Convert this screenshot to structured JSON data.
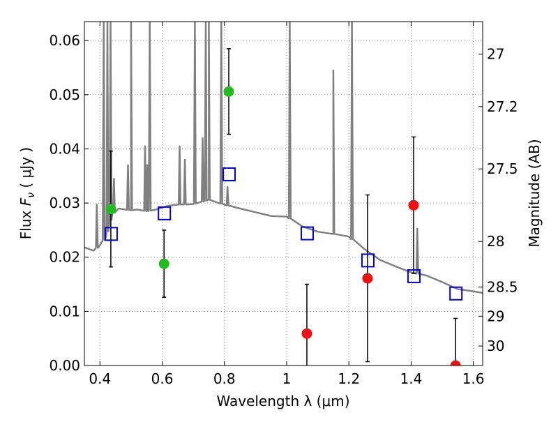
{
  "chart_data": {
    "type": "scatter",
    "xlabel": "Wavelength  λ (μm)",
    "ylabel_prefix": "Flux  ",
    "ylabel_symbol": "F",
    "ylabel_subscript": "ν",
    "ylabel_suffix": "  ( μJy )",
    "ylabel_right": "Magnitude (AB)",
    "xlim": [
      0.35,
      1.63
    ],
    "ylim": [
      0.0,
      0.0635
    ],
    "grid": true,
    "xticks": [
      0.4,
      0.6,
      0.8,
      1.0,
      1.2,
      1.4,
      1.6
    ],
    "xtick_labels": [
      "0.4",
      "0.6",
      "0.8",
      "1",
      "1.2",
      "1.4",
      "1.6"
    ],
    "yticks": [
      0.0,
      0.01,
      0.02,
      0.03,
      0.04,
      0.05,
      0.06
    ],
    "ytick_labels": [
      "0.00",
      "0.01",
      "0.02",
      "0.03",
      "0.04",
      "0.05",
      "0.06"
    ],
    "right_ticks": [
      {
        "label": "27",
        "flux": 0.0575
      },
      {
        "label": "27.2",
        "flux": 0.0478
      },
      {
        "label": "27.5",
        "flux": 0.0363
      },
      {
        "label": "28",
        "flux": 0.0229
      },
      {
        "label": "28.5",
        "flux": 0.0145
      },
      {
        "label": "29",
        "flux": 0.0091
      },
      {
        "label": "30",
        "flux": 0.0036
      }
    ],
    "colors": {
      "model": "#808080",
      "detections": "#22bb22",
      "nondetections": "#ee1111",
      "model_photometry": "#0000dd",
      "errorbar": "#000000",
      "grid": "#888888"
    },
    "model_spectrum": [
      [
        0.35,
        0.0218
      ],
      [
        0.38,
        0.0212
      ],
      [
        0.4,
        0.0222
      ],
      [
        0.42,
        0.0238
      ],
      [
        0.43,
        0.0262
      ],
      [
        0.44,
        0.028
      ],
      [
        0.46,
        0.029
      ],
      [
        0.48,
        0.0288
      ],
      [
        0.5,
        0.0287
      ],
      [
        0.52,
        0.0288
      ],
      [
        0.55,
        0.0285
      ],
      [
        0.58,
        0.0288
      ],
      [
        0.62,
        0.0295
      ],
      [
        0.65,
        0.0297
      ],
      [
        0.7,
        0.0298
      ],
      [
        0.75,
        0.0306
      ],
      [
        0.8,
        0.0297
      ],
      [
        0.85,
        0.029
      ],
      [
        0.9,
        0.0283
      ],
      [
        0.95,
        0.0276
      ],
      [
        1.0,
        0.0275
      ],
      [
        1.05,
        0.0257
      ],
      [
        1.1,
        0.0247
      ],
      [
        1.15,
        0.0243
      ],
      [
        1.2,
        0.0238
      ],
      [
        1.25,
        0.0215
      ],
      [
        1.3,
        0.0195
      ],
      [
        1.35,
        0.0183
      ],
      [
        1.4,
        0.0172
      ],
      [
        1.45,
        0.0166
      ],
      [
        1.5,
        0.0154
      ],
      [
        1.55,
        0.0141
      ],
      [
        1.6,
        0.0137
      ],
      [
        1.63,
        0.0134
      ]
    ],
    "emission_lines": [
      {
        "x": 0.39,
        "peak": 0.0297
      },
      {
        "x": 0.412,
        "peak": 0.0635
      },
      {
        "x": 0.424,
        "peak": 0.0635
      },
      {
        "x": 0.434,
        "peak": 0.0635
      },
      {
        "x": 0.445,
        "peak": 0.0345
      },
      {
        "x": 0.49,
        "peak": 0.037
      },
      {
        "x": 0.5,
        "peak": 0.0635
      },
      {
        "x": 0.545,
        "peak": 0.0405
      },
      {
        "x": 0.552,
        "peak": 0.037
      },
      {
        "x": 0.56,
        "peak": 0.0635
      },
      {
        "x": 0.656,
        "peak": 0.0405
      },
      {
        "x": 0.673,
        "peak": 0.038
      },
      {
        "x": 0.705,
        "peak": 0.0635
      },
      {
        "x": 0.73,
        "peak": 0.042
      },
      {
        "x": 0.74,
        "peak": 0.0635
      },
      {
        "x": 0.75,
        "peak": 0.0635
      },
      {
        "x": 0.79,
        "peak": 0.0635
      },
      {
        "x": 0.81,
        "peak": 0.033
      },
      {
        "x": 1.01,
        "peak": 0.0635
      },
      {
        "x": 1.15,
        "peak": 0.0545
      },
      {
        "x": 1.21,
        "peak": 0.0635
      },
      {
        "x": 1.42,
        "peak": 0.0253
      }
    ],
    "detections": [
      {
        "x": 0.435,
        "y": 0.0289,
        "yerr": 0.0107
      },
      {
        "x": 0.606,
        "y": 0.0188,
        "yerr": 0.0062
      },
      {
        "x": 0.814,
        "y": 0.0506,
        "yerr": 0.0079
      }
    ],
    "nondetections": [
      {
        "x": 1.065,
        "y": 0.0059,
        "yerr": 0.0091
      },
      {
        "x": 1.26,
        "y": 0.0161,
        "yerr": 0.0154
      },
      {
        "x": 1.408,
        "y": 0.0296,
        "yerr": 0.0126
      },
      {
        "x": 1.543,
        "y": 0.0,
        "yerr": 0.0087
      }
    ],
    "model_photometry": [
      {
        "x": 0.435,
        "y": 0.0243
      },
      {
        "x": 0.606,
        "y": 0.0281
      },
      {
        "x": 0.814,
        "y": 0.0353
      },
      {
        "x": 1.065,
        "y": 0.0244
      },
      {
        "x": 1.26,
        "y": 0.0194
      },
      {
        "x": 1.408,
        "y": 0.0165
      },
      {
        "x": 1.543,
        "y": 0.0133
      }
    ]
  }
}
